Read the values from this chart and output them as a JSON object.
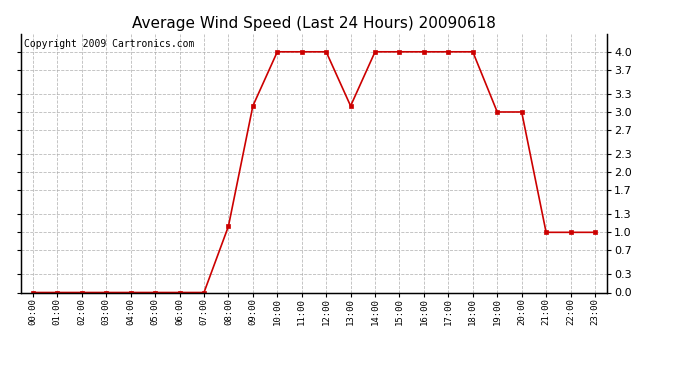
{
  "title": "Average Wind Speed (Last 24 Hours) 20090618",
  "copyright": "Copyright 2009 Cartronics.com",
  "hours": [
    "00:00",
    "01:00",
    "02:00",
    "03:00",
    "04:00",
    "05:00",
    "06:00",
    "07:00",
    "08:00",
    "09:00",
    "10:00",
    "11:00",
    "12:00",
    "13:00",
    "14:00",
    "15:00",
    "16:00",
    "17:00",
    "18:00",
    "19:00",
    "20:00",
    "21:00",
    "22:00",
    "23:00"
  ],
  "values": [
    0.0,
    0.0,
    0.0,
    0.0,
    0.0,
    0.0,
    0.0,
    0.0,
    1.1,
    3.1,
    4.0,
    4.0,
    4.0,
    3.1,
    4.0,
    4.0,
    4.0,
    4.0,
    4.0,
    3.0,
    3.0,
    1.0,
    1.0,
    1.0
  ],
  "line_color": "#cc0000",
  "marker": "s",
  "marker_size": 2.5,
  "ylim": [
    0.0,
    4.3
  ],
  "yticks": [
    0.0,
    0.3,
    0.7,
    1.0,
    1.3,
    1.7,
    2.0,
    2.3,
    2.7,
    3.0,
    3.3,
    3.7,
    4.0
  ],
  "bg_color": "#ffffff",
  "plot_bg_color": "#ffffff",
  "grid_color": "#aaaaaa",
  "title_fontsize": 11,
  "copyright_fontsize": 7
}
